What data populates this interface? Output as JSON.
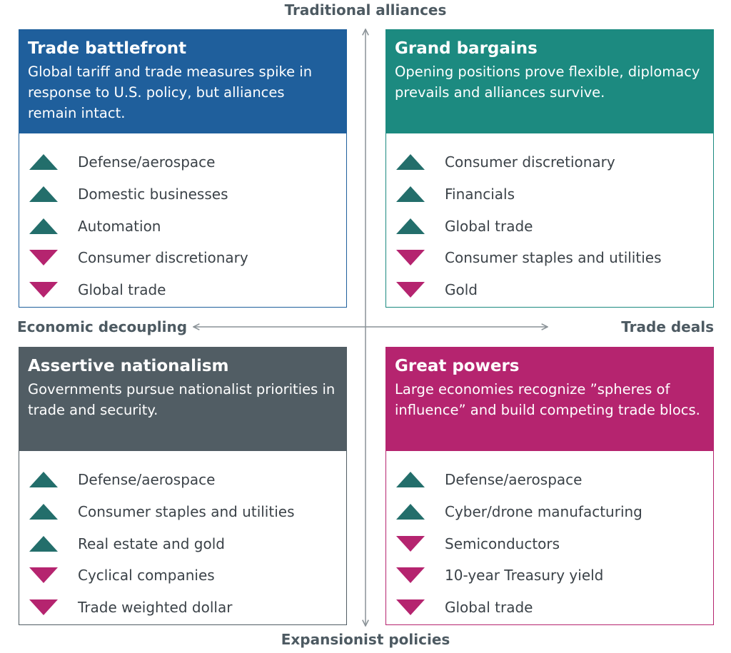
{
  "axes": {
    "top": "Traditional alliances",
    "bottom": "Expansionist policies",
    "left": "Economic decoupling",
    "right": "Trade deals"
  },
  "colors": {
    "up": "#236e6b",
    "down": "#b5246f",
    "axis": "#8a9297"
  },
  "quadrants": [
    {
      "title": "Trade battlefront",
      "description": "Global tariff and trade measures spike in response to U.S. policy, but alliances remain intact.",
      "color": "#1f5f9c",
      "items": [
        {
          "direction": "up",
          "label": "Defense/aerospace"
        },
        {
          "direction": "up",
          "label": "Domestic businesses"
        },
        {
          "direction": "up",
          "label": "Automation"
        },
        {
          "direction": "down",
          "label": "Consumer discretionary"
        },
        {
          "direction": "down",
          "label": "Global  trade"
        }
      ]
    },
    {
      "title": "Grand bargains",
      "description": "Opening positions prove flexible, diplomacy prevails and alliances survive.",
      "color": "#1c8a80",
      "items": [
        {
          "direction": "up",
          "label": "Consumer discretionary"
        },
        {
          "direction": "up",
          "label": "Financials"
        },
        {
          "direction": "up",
          "label": "Global trade"
        },
        {
          "direction": "down",
          "label": "Consumer staples and utilities"
        },
        {
          "direction": "down",
          "label": "Gold"
        }
      ]
    },
    {
      "title": "Assertive nationalism",
      "description": "Governments pursue nationalist priorities in trade and security.",
      "color": "#515d64",
      "items": [
        {
          "direction": "up",
          "label": "Defense/aerospace"
        },
        {
          "direction": "up",
          "label": "Consumer staples and utilities"
        },
        {
          "direction": "up",
          "label": "Real estate and gold"
        },
        {
          "direction": "down",
          "label": "Cyclical companies"
        },
        {
          "direction": "down",
          "label": "Trade weighted dollar"
        }
      ]
    },
    {
      "title": "Great powers",
      "description": "Large economies recognize ”spheres of influence” and build competing trade blocs.",
      "color": "#b5246f",
      "items": [
        {
          "direction": "up",
          "label": "Defense/aerospace"
        },
        {
          "direction": "up",
          "label": "Cyber/drone manufacturing"
        },
        {
          "direction": "down",
          "label": "Semiconductors"
        },
        {
          "direction": "down",
          "label": "10-year Treasury yield"
        },
        {
          "direction": "down",
          "label": "Global  trade"
        }
      ]
    }
  ]
}
